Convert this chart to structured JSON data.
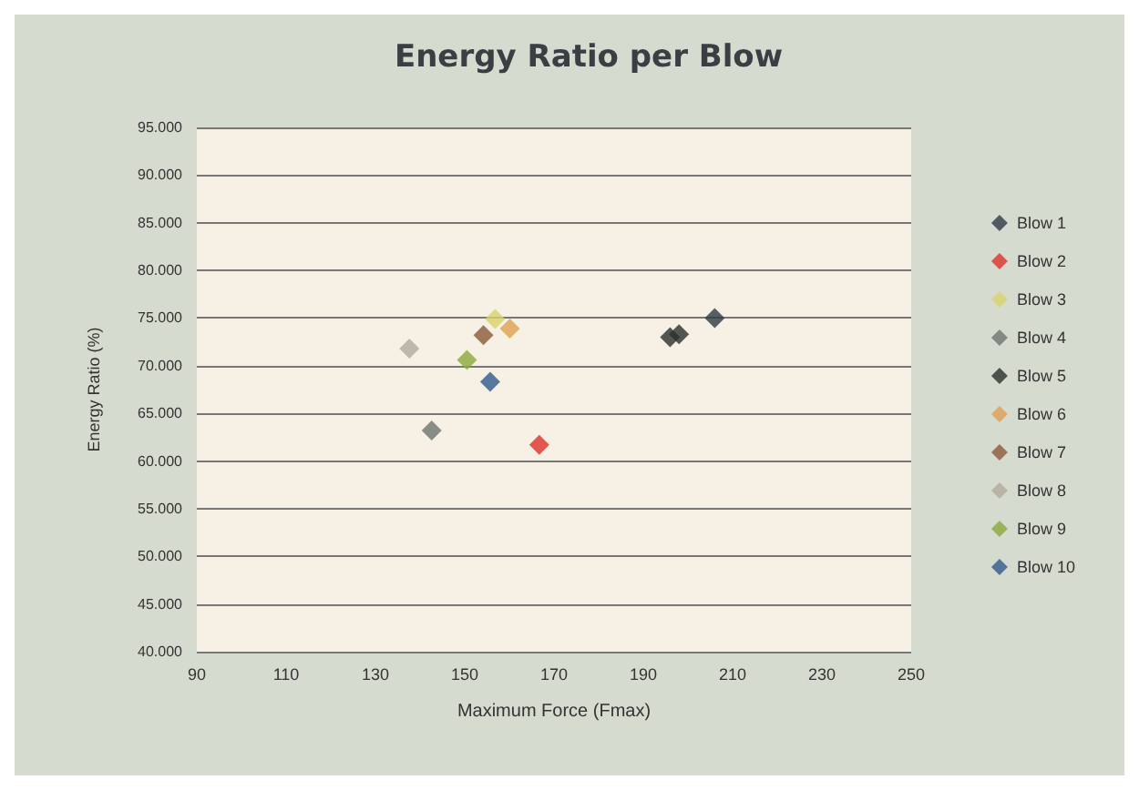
{
  "chart_data": {
    "type": "scatter",
    "title": "Energy Ratio per Blow",
    "xlabel": "Maximum Force (Fmax)",
    "ylabel": "Energy Ratio (%)",
    "series": [
      {
        "name": "Blow 1",
        "color": "#2f3a44",
        "x": [
          206
        ],
        "values": [
          75.0
        ]
      },
      {
        "name": "Blow 2",
        "color": "#e0302a",
        "x": [
          166.7
        ],
        "values": [
          61.7
        ]
      },
      {
        "name": "Blow 3",
        "color": "#d8d26a",
        "x": [
          156.8
        ],
        "values": [
          74.9
        ]
      },
      {
        "name": "Blow 4",
        "color": "#6e7470",
        "x": [
          142.6
        ],
        "values": [
          63.2
        ]
      },
      {
        "name": "Blow 5",
        "color": "#2a302c",
        "x": [
          196,
          198
        ],
        "values": [
          73.0,
          73.3
        ]
      },
      {
        "name": "Blow 6",
        "color": "#e0a050",
        "x": [
          160.1
        ],
        "values": [
          73.9
        ]
      },
      {
        "name": "Blow 7",
        "color": "#8a5a3a",
        "x": [
          154.2
        ],
        "values": [
          73.2
        ]
      },
      {
        "name": "Blow 8",
        "color": "#b0aa9e",
        "x": [
          137.6
        ],
        "values": [
          71.8
        ]
      },
      {
        "name": "Blow 9",
        "color": "#8aaa3a",
        "x": [
          150.5
        ],
        "values": [
          70.6
        ]
      },
      {
        "name": "Blow 10",
        "color": "#2f5a8a",
        "x": [
          155.7
        ],
        "values": [
          68.3
        ]
      }
    ],
    "xlim": [
      90,
      250
    ],
    "xticks": [
      90,
      110,
      130,
      150,
      170,
      190,
      210,
      230,
      250
    ],
    "ylim": [
      40,
      95
    ],
    "yticks": [
      {
        "value": 40,
        "label": "40.000"
      },
      {
        "value": 45,
        "label": "45.000"
      },
      {
        "value": 50,
        "label": "50.000"
      },
      {
        "value": 55,
        "label": "55.000"
      },
      {
        "value": 60,
        "label": "60.000"
      },
      {
        "value": 65,
        "label": "65.000"
      },
      {
        "value": 70,
        "label": "70.000"
      },
      {
        "value": 75,
        "label": "75.000"
      },
      {
        "value": 80,
        "label": "80.000"
      },
      {
        "value": 85,
        "label": "85.000"
      },
      {
        "value": 90,
        "label": "90.000"
      },
      {
        "value": 95,
        "label": "95.000"
      }
    ],
    "grid": "y",
    "legend": "right",
    "marker": "diamond"
  }
}
